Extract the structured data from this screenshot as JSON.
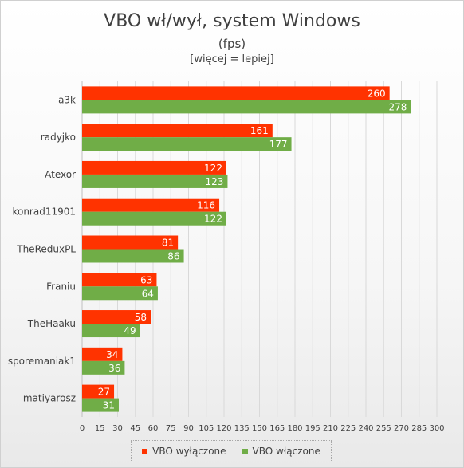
{
  "colors": {
    "off": "#ff3300",
    "on": "#70ad47"
  },
  "chart_data": {
    "type": "bar",
    "orientation": "horizontal",
    "title": "VBO wł/wył, system Windows",
    "subtitle": "(fps)",
    "note": "[więcej = lepiej]",
    "categories": [
      "a3k",
      "radyjko",
      "Atexor",
      "konrad11901",
      "TheReduxPL",
      "Franiu",
      "TheHaaku",
      "sporemaniak1",
      "matiyarosz"
    ],
    "series": [
      {
        "name": "VBO wyłączone",
        "values": [
          260,
          161,
          122,
          116,
          81,
          63,
          58,
          34,
          27
        ]
      },
      {
        "name": "VBO włączone",
        "values": [
          278,
          177,
          123,
          122,
          86,
          64,
          49,
          36,
          31
        ]
      }
    ],
    "xlim": [
      0,
      300
    ],
    "xticks": [
      0,
      15,
      30,
      45,
      60,
      75,
      90,
      105,
      120,
      135,
      150,
      165,
      180,
      195,
      210,
      225,
      240,
      255,
      270,
      285,
      300
    ],
    "grid": true,
    "legend_position": "bottom"
  }
}
